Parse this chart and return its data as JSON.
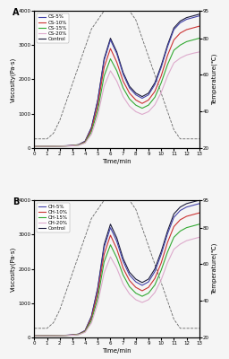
{
  "panel_A_label": "A",
  "panel_B_label": "B",
  "legend_A": [
    "CS-5%",
    "CS-10%",
    "CS-15%",
    "CS-20%",
    "Control"
  ],
  "legend_B": [
    "CH-5%",
    "CH-10%",
    "CH-15%",
    "CH-20%",
    "Control"
  ],
  "xlabel": "Time/min",
  "ylabel_left": "Viscosity(Pa·s)",
  "ylabel_right": "Temperature(℃)",
  "xlim": [
    0,
    13
  ],
  "ylim_left": [
    0,
    4000
  ],
  "ylim_right": [
    20,
    95
  ],
  "xticks": [
    0,
    1,
    2,
    3,
    4,
    5,
    6,
    7,
    8,
    9,
    10,
    11,
    12,
    13
  ],
  "time": [
    0,
    0.5,
    1,
    1.5,
    2,
    2.5,
    3,
    3.5,
    4,
    4.5,
    5,
    5.5,
    6,
    6.5,
    7,
    7.5,
    8,
    8.5,
    9,
    9.5,
    10,
    10.5,
    11,
    11.5,
    12,
    12.5,
    13
  ],
  "temp_profile": [
    25,
    25,
    25,
    28,
    35,
    45,
    55,
    65,
    75,
    85,
    90,
    95,
    95,
    95,
    95,
    95,
    90,
    80,
    70,
    60,
    50,
    40,
    30,
    25,
    25,
    25,
    25
  ],
  "viscA_control": [
    50,
    50,
    52,
    55,
    60,
    65,
    75,
    100,
    200,
    600,
    1400,
    2600,
    3200,
    2800,
    2200,
    1800,
    1600,
    1500,
    1600,
    1900,
    2400,
    3000,
    3500,
    3700,
    3800,
    3850,
    3900
  ],
  "viscA_5": [
    50,
    50,
    52,
    54,
    58,
    63,
    73,
    95,
    190,
    580,
    1380,
    2550,
    3150,
    2750,
    2150,
    1750,
    1550,
    1450,
    1550,
    1850,
    2350,
    2950,
    3450,
    3650,
    3750,
    3800,
    3850
  ],
  "viscA_10": [
    50,
    50,
    51,
    53,
    56,
    61,
    70,
    90,
    175,
    530,
    1250,
    2350,
    2900,
    2500,
    1950,
    1600,
    1400,
    1300,
    1400,
    1650,
    2100,
    2700,
    3150,
    3350,
    3450,
    3500,
    3550
  ],
  "viscA_15": [
    50,
    50,
    51,
    52,
    55,
    59,
    67,
    84,
    160,
    470,
    1100,
    2100,
    2600,
    2250,
    1750,
    1430,
    1250,
    1160,
    1250,
    1480,
    1900,
    2430,
    2850,
    3000,
    3100,
    3150,
    3200
  ],
  "viscA_20": [
    50,
    50,
    50,
    51,
    53,
    57,
    64,
    78,
    145,
    400,
    950,
    1800,
    2250,
    1950,
    1500,
    1220,
    1060,
    980,
    1060,
    1260,
    1620,
    2100,
    2480,
    2620,
    2710,
    2760,
    2800
  ],
  "viscB_control": [
    50,
    50,
    52,
    55,
    60,
    65,
    75,
    100,
    200,
    620,
    1450,
    2700,
    3300,
    2900,
    2300,
    1900,
    1700,
    1600,
    1700,
    2000,
    2500,
    3100,
    3600,
    3800,
    3900,
    3950,
    4000
  ],
  "viscB_5": [
    50,
    50,
    52,
    54,
    58,
    63,
    73,
    96,
    195,
    600,
    1420,
    2620,
    3200,
    2800,
    2220,
    1820,
    1620,
    1520,
    1620,
    1920,
    2420,
    3020,
    3500,
    3700,
    3800,
    3850,
    3900
  ],
  "viscB_10": [
    50,
    50,
    51,
    53,
    56,
    61,
    71,
    92,
    180,
    550,
    1300,
    2420,
    2980,
    2580,
    2020,
    1660,
    1460,
    1360,
    1460,
    1720,
    2170,
    2770,
    3230,
    3430,
    3530,
    3580,
    3630
  ],
  "viscB_15": [
    50,
    50,
    51,
    52,
    55,
    59,
    68,
    86,
    166,
    490,
    1150,
    2200,
    2700,
    2320,
    1820,
    1480,
    1290,
    1200,
    1290,
    1530,
    1960,
    2490,
    2920,
    3100,
    3200,
    3250,
    3300
  ],
  "viscB_20": [
    50,
    50,
    50,
    51,
    53,
    57,
    65,
    80,
    150,
    420,
    1000,
    1880,
    2350,
    2020,
    1560,
    1270,
    1100,
    1020,
    1100,
    1310,
    1680,
    2180,
    2570,
    2720,
    2820,
    2870,
    2920
  ],
  "background": "#f5f5f5",
  "temp_color": "#666666",
  "colors_ordered": [
    "#1a1a3a",
    "#4444aa",
    "#cc3333",
    "#33aa33",
    "#ddaacc"
  ],
  "legend_colors": [
    "#4444aa",
    "#cc3333",
    "#33aa33",
    "#ddaacc",
    "#1a1a3a"
  ],
  "fontsize_label": 5,
  "fontsize_tick": 4,
  "fontsize_legend": 4,
  "fontsize_panel": 7
}
